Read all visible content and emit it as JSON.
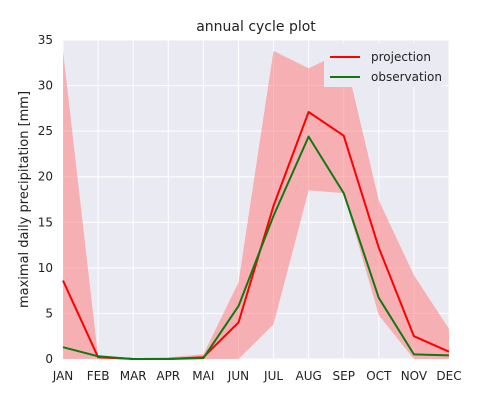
{
  "chart_data": {
    "type": "line",
    "title": "annual cycle plot",
    "xlabel": "",
    "ylabel": "maximal daily precipitation [mm]",
    "categories": [
      "JAN",
      "FEB",
      "MAR",
      "APR",
      "MAI",
      "JUN",
      "JUL",
      "AUG",
      "SEP",
      "OCT",
      "NOV",
      "DEC"
    ],
    "ylim": [
      0,
      35
    ],
    "yticks": [
      "0",
      "5",
      "10",
      "15",
      "20",
      "25",
      "30",
      "35"
    ],
    "grid": true,
    "legend_position": "top-right",
    "series": [
      {
        "name": "projection",
        "color": "#ff0000",
        "values": [
          8.6,
          0.2,
          0.0,
          0.0,
          0.2,
          4.0,
          16.8,
          27.1,
          24.5,
          12.2,
          2.5,
          0.8
        ]
      },
      {
        "name": "observation",
        "color": "#117811",
        "values": [
          1.3,
          0.3,
          0.0,
          0.0,
          0.1,
          5.8,
          15.7,
          24.4,
          18.2,
          6.7,
          0.5,
          0.4
        ]
      }
    ],
    "band": {
      "series": "projection",
      "color": "#ff7f7f",
      "opacity": 0.55,
      "upper": [
        33.8,
        0.2,
        0.1,
        0.2,
        0.5,
        8.4,
        33.8,
        31.9,
        33.7,
        17.4,
        9.2,
        3.3
      ],
      "lower": [
        0.0,
        0.0,
        0.0,
        0.0,
        0.0,
        0.0,
        3.8,
        18.5,
        18.2,
        4.8,
        0.0,
        0.0
      ]
    },
    "background_color": "#eaeaf2",
    "grid_color": "#ffffff"
  }
}
